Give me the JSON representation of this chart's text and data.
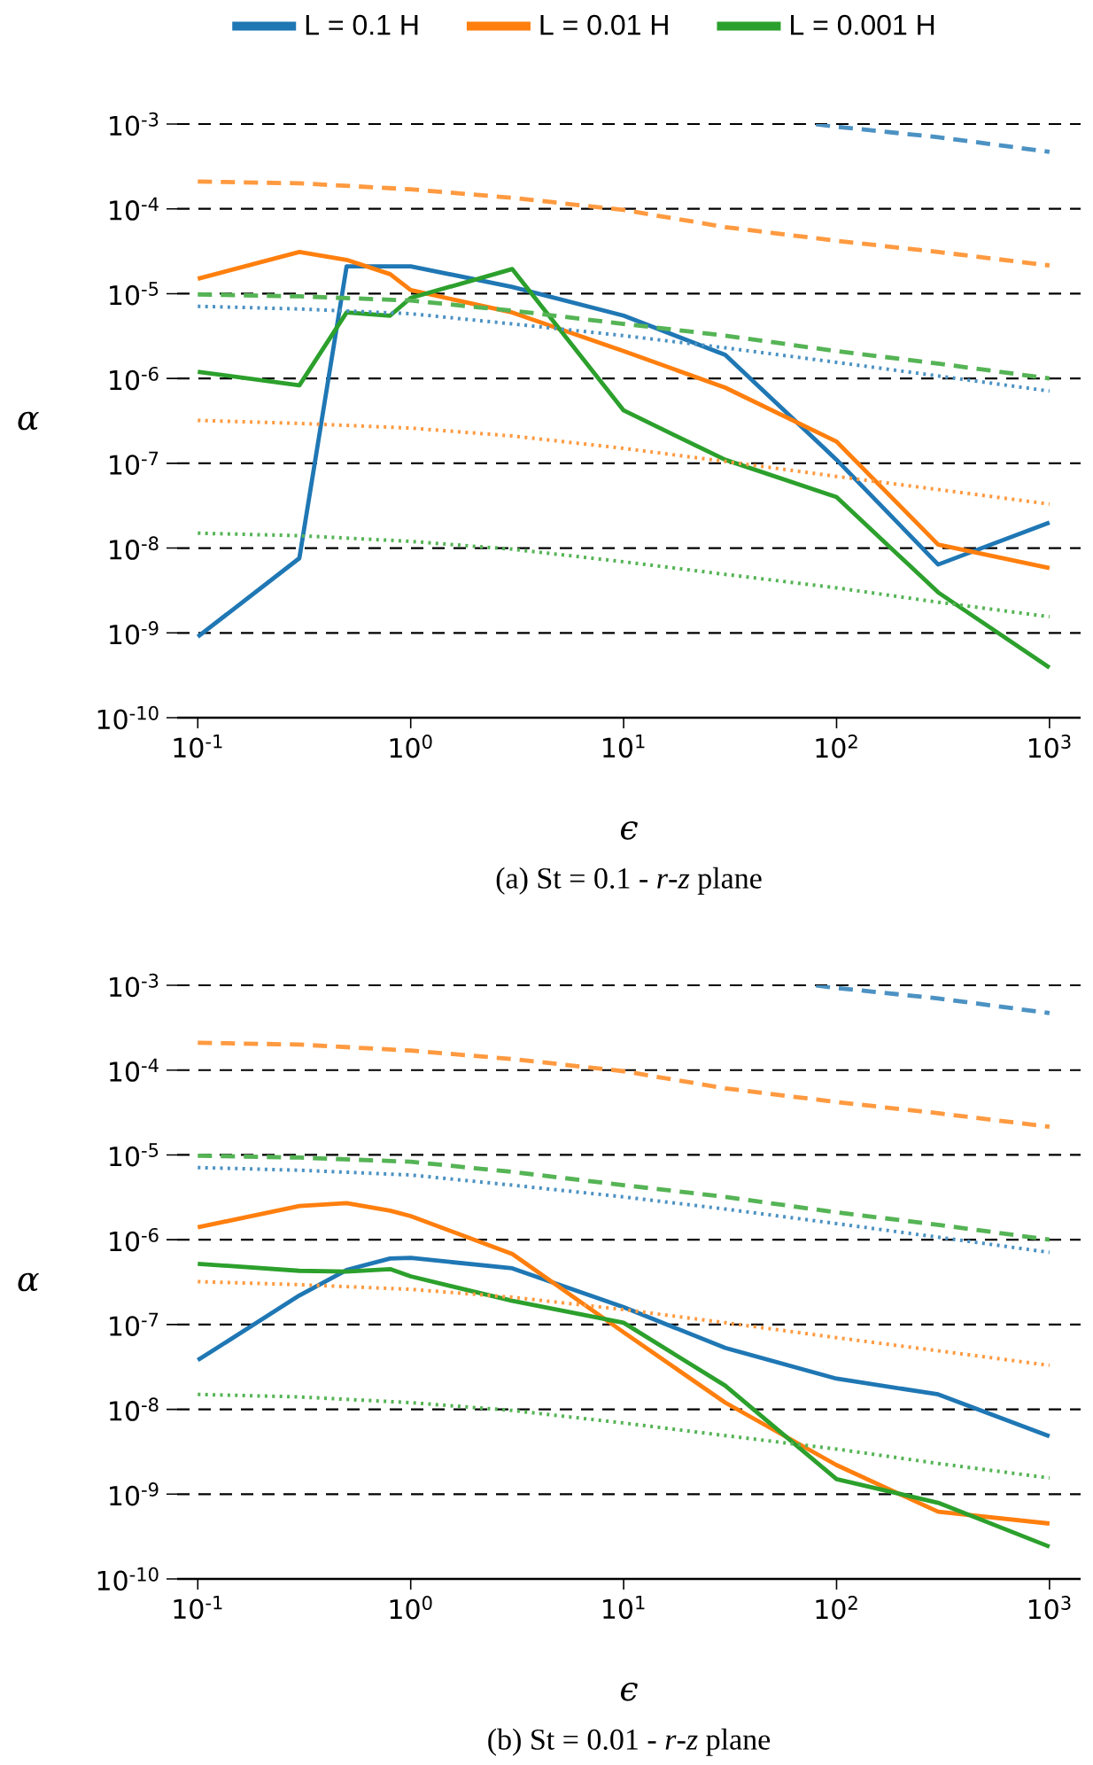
{
  "chart_data": [
    {
      "type": "line",
      "xlabel": "ϵ",
      "ylabel": "α",
      "annotations": [
        "(a)  St = 0.1 - *r*-*z* plane"
      ],
      "log": "xy",
      "grid": "y",
      "legend": "top",
      "marker": "none",
      "xlim": [
        0.08,
        1400
      ],
      "ylim": [
        1e-10,
        0.001
      ],
      "xticks": [
        {
          "value": 0.1,
          "label": "10$^{-1}$"
        },
        {
          "value": 1,
          "label": "10$^{0}$"
        },
        {
          "value": 10,
          "label": "10$^{1}$"
        },
        {
          "value": 100,
          "label": "10$^{2}$"
        },
        {
          "value": 1000,
          "label": "10$^{3}$"
        }
      ],
      "yticks": [
        {
          "value": 1e-10,
          "label": "10$^{-10}$"
        },
        {
          "value": 1e-09,
          "label": "10$^{-9}$"
        },
        {
          "value": 1e-08,
          "label": "10$^{-8}$"
        },
        {
          "value": 1e-07,
          "label": "10$^{-7}$"
        },
        {
          "value": 1e-06,
          "label": "10$^{-6}$"
        },
        {
          "value": 1e-05,
          "label": "10$^{-5}$"
        },
        {
          "value": 0.0001,
          "label": "10$^{-4}$"
        },
        {
          "value": 0.001,
          "label": "10$^{-3}$"
        }
      ],
      "x": [
        0.1,
        0.3,
        0.5,
        0.8,
        1,
        3,
        10,
        30,
        100,
        300,
        1000
      ],
      "series": [
        {
          "name": "L = 0.1 H",
          "color": "#1f77b4",
          "line_style": "solid",
          "values": [
            9e-10,
            7.6e-09,
            2.1e-05,
            2.1e-05,
            2.1e-05,
            1.2e-05,
            5.5e-06,
            1.9e-06,
            1.1e-07,
            6.4e-09,
            2e-08
          ]
        },
        {
          "name": "L = 0.01 H",
          "color": "#ff7f0e",
          "line_style": "solid",
          "values": [
            1.5e-05,
            3.1e-05,
            2.5e-05,
            1.7e-05,
            1.1e-05,
            6e-06,
            2.1e-06,
            7.8e-07,
            1.8e-07,
            1.1e-08,
            5.8e-09
          ]
        },
        {
          "name": "L = 0.001 H",
          "color": "#2ca02c",
          "line_style": "solid",
          "values": [
            1.2e-06,
            8.3e-07,
            6e-06,
            5.5e-06,
            8.9e-06,
            1.95e-05,
            4.2e-07,
            1.1e-07,
            4e-08,
            3e-09,
            3.9e-10
          ]
        },
        {
          "color": "#4c92c3",
          "line_style": "dashed",
          "x": [
            80,
            100,
            300,
            1000
          ],
          "values": [
            0.001,
            0.00093,
            0.0007,
            0.00047
          ]
        },
        {
          "color": "#ff9a40",
          "line_style": "dashed",
          "x": [
            0.1,
            0.3,
            1,
            3,
            10,
            30,
            100,
            300,
            1000
          ],
          "values": [
            0.00021,
            0.0002,
            0.00017,
            0.000135,
            9.7e-05,
            6.1e-05,
            4.2e-05,
            3.1e-05,
            2.15e-05
          ]
        },
        {
          "color": "#55b455",
          "line_style": "dashed",
          "x": [
            0.1,
            0.3,
            1,
            3,
            10,
            30,
            100,
            300,
            1000
          ],
          "values": [
            9.8e-06,
            9.3e-06,
            8.3e-06,
            6.3e-06,
            4.4e-06,
            3.2e-06,
            2.1e-06,
            1.5e-06,
            1e-06
          ]
        },
        {
          "color": "#4c92c3",
          "line_style": "dotted",
          "x": [
            0.1,
            0.3,
            1,
            3,
            10,
            30,
            100,
            300,
            1000
          ],
          "values": [
            7.1e-06,
            6.6e-06,
            5.8e-06,
            4.4e-06,
            3.2e-06,
            2.3e-06,
            1.55e-06,
            1.07e-06,
            7.1e-07
          ]
        },
        {
          "color": "#ff9a40",
          "line_style": "dotted",
          "x": [
            0.1,
            0.3,
            1,
            3,
            10,
            30,
            100,
            300,
            1000
          ],
          "values": [
            3.2e-07,
            2.95e-07,
            2.6e-07,
            2.1e-07,
            1.5e-07,
            1.05e-07,
            7e-08,
            4.9e-08,
            3.3e-08
          ]
        },
        {
          "color": "#55b455",
          "line_style": "dotted",
          "x": [
            0.1,
            0.3,
            1,
            3,
            10,
            30,
            100,
            300,
            1000
          ],
          "values": [
            1.5e-08,
            1.4e-08,
            1.2e-08,
            9.7e-09,
            6.9e-09,
            4.9e-09,
            3.4e-09,
            2.3e-09,
            1.55e-09
          ]
        }
      ]
    },
    {
      "type": "line",
      "xlabel": "ϵ",
      "ylabel": "α",
      "annotations": [
        "(b)  St = 0.01 - *r*-*z* plane"
      ],
      "log": "xy",
      "grid": "y",
      "marker": "none",
      "xlim": [
        0.08,
        1400
      ],
      "ylim": [
        1e-10,
        0.001
      ],
      "xticks": [
        {
          "value": 0.1,
          "label": "10$^{-1}$"
        },
        {
          "value": 1,
          "label": "10$^{0}$"
        },
        {
          "value": 10,
          "label": "10$^{1}$"
        },
        {
          "value": 100,
          "label": "10$^{2}$"
        },
        {
          "value": 1000,
          "label": "10$^{3}$"
        }
      ],
      "yticks": [
        {
          "value": 1e-10,
          "label": "10$^{-10}$"
        },
        {
          "value": 1e-09,
          "label": "10$^{-9}$"
        },
        {
          "value": 1e-08,
          "label": "10$^{-8}$"
        },
        {
          "value": 1e-07,
          "label": "10$^{-7}$"
        },
        {
          "value": 1e-06,
          "label": "10$^{-6}$"
        },
        {
          "value": 1e-05,
          "label": "10$^{-5}$"
        },
        {
          "value": 0.0001,
          "label": "10$^{-4}$"
        },
        {
          "value": 0.001,
          "label": "10$^{-3}$"
        }
      ],
      "x": [
        0.1,
        0.3,
        0.5,
        0.8,
        1,
        3,
        10,
        30,
        100,
        300,
        1000
      ],
      "series": [
        {
          "color": "#1f77b4",
          "line_style": "solid",
          "values": [
            3.8e-08,
            2.2e-07,
            4.4e-07,
            6e-07,
            6.1e-07,
            4.6e-07,
            1.6e-07,
            5.3e-08,
            2.3e-08,
            1.5e-08,
            4.8e-09
          ]
        },
        {
          "color": "#ff7f0e",
          "line_style": "solid",
          "values": [
            1.4e-06,
            2.5e-06,
            2.7e-06,
            2.2e-06,
            1.9e-06,
            6.8e-07,
            8.1e-08,
            1.2e-08,
            2.2e-09,
            6.2e-10,
            4.5e-10
          ]
        },
        {
          "color": "#2ca02c",
          "line_style": "solid",
          "values": [
            5.2e-07,
            4.3e-07,
            4.2e-07,
            4.5e-07,
            3.7e-07,
            1.9e-07,
            1.05e-07,
            1.9e-08,
            1.5e-09,
            7.9e-10,
            2.4e-10
          ]
        },
        {
          "color": "#4c92c3",
          "line_style": "dashed",
          "x": [
            80,
            100,
            300,
            1000
          ],
          "values": [
            0.001,
            0.00093,
            0.0007,
            0.00047
          ]
        },
        {
          "color": "#ff9a40",
          "line_style": "dashed",
          "x": [
            0.1,
            0.3,
            1,
            3,
            10,
            30,
            100,
            300,
            1000
          ],
          "values": [
            0.00021,
            0.0002,
            0.00017,
            0.000135,
            9.7e-05,
            6.1e-05,
            4.2e-05,
            3.1e-05,
            2.15e-05
          ]
        },
        {
          "color": "#55b455",
          "line_style": "dashed",
          "x": [
            0.1,
            0.3,
            1,
            3,
            10,
            30,
            100,
            300,
            1000
          ],
          "values": [
            9.8e-06,
            9.3e-06,
            8.3e-06,
            6.3e-06,
            4.4e-06,
            3.2e-06,
            2.1e-06,
            1.5e-06,
            1e-06
          ]
        },
        {
          "color": "#4c92c3",
          "line_style": "dotted",
          "x": [
            0.1,
            0.3,
            1,
            3,
            10,
            30,
            100,
            300,
            1000
          ],
          "values": [
            7.1e-06,
            6.6e-06,
            5.8e-06,
            4.4e-06,
            3.2e-06,
            2.3e-06,
            1.55e-06,
            1.07e-06,
            7.1e-07
          ]
        },
        {
          "color": "#ff9a40",
          "line_style": "dotted",
          "x": [
            0.1,
            0.3,
            1,
            3,
            10,
            30,
            100,
            300,
            1000
          ],
          "values": [
            3.2e-07,
            2.95e-07,
            2.6e-07,
            2.1e-07,
            1.5e-07,
            1.05e-07,
            7e-08,
            4.9e-08,
            3.3e-08
          ]
        },
        {
          "color": "#55b455",
          "line_style": "dotted",
          "x": [
            0.1,
            0.3,
            1,
            3,
            10,
            30,
            100,
            300,
            1000
          ],
          "values": [
            1.5e-08,
            1.4e-08,
            1.2e-08,
            9.7e-09,
            6.9e-09,
            4.9e-09,
            3.4e-09,
            2.3e-09,
            1.55e-09
          ]
        }
      ]
    }
  ]
}
